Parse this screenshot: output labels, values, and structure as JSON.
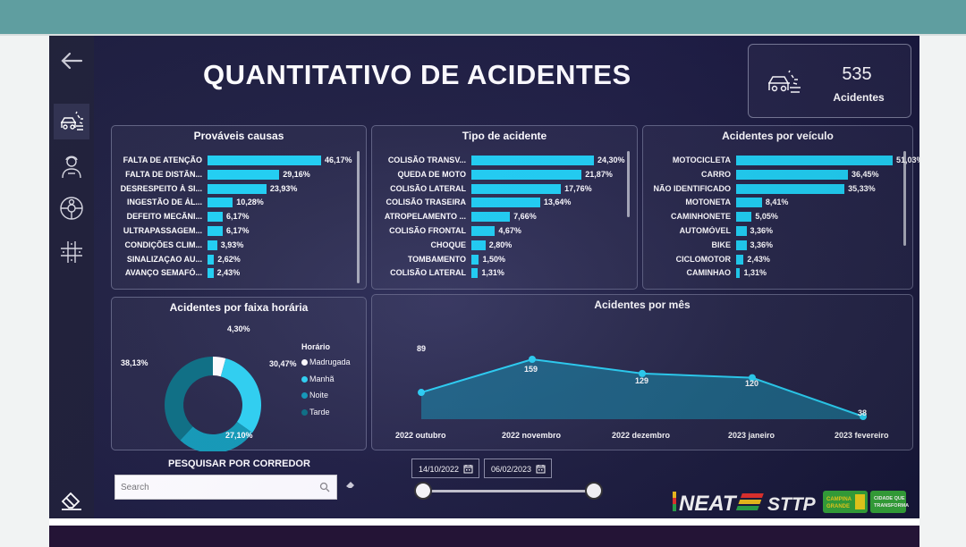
{
  "dashboard": {
    "title": "QUANTITATIVO DE ACIDENTES"
  },
  "kpi": {
    "value": "535",
    "label": "Acidentes",
    "icon": "car-crash-icon"
  },
  "sidebar": {
    "items": [
      "back-arrow-icon",
      "car-crash-icon",
      "person-icon",
      "steering-wheel-icon",
      "road-icon",
      "eraser-icon"
    ]
  },
  "causes": {
    "title": "Prováveis causas",
    "rows": [
      {
        "label": "FALTA DE ATENÇÃO",
        "value": 46.17,
        "text": "46,17%"
      },
      {
        "label": "FALTA DE DISTÂN...",
        "value": 29.16,
        "text": "29,16%"
      },
      {
        "label": "DESRESPEITO À SI...",
        "value": 23.93,
        "text": "23,93%"
      },
      {
        "label": "INGESTÃO DE ÁL...",
        "value": 10.28,
        "text": "10,28%"
      },
      {
        "label": "DEFEITO MECÂNI...",
        "value": 6.17,
        "text": "6,17%"
      },
      {
        "label": "ULTRAPASSAGEM...",
        "value": 6.17,
        "text": "6,17%"
      },
      {
        "label": "CONDIÇÕES CLIM...",
        "value": 3.93,
        "text": "3,93%"
      },
      {
        "label": "SINALIZAÇAO AU...",
        "value": 2.62,
        "text": "2,62%"
      },
      {
        "label": "AVANÇO SEMAFÓ...",
        "value": 2.43,
        "text": "2,43%"
      }
    ]
  },
  "types": {
    "title": "Tipo de acidente",
    "rows": [
      {
        "label": "COLISÃO TRANSV...",
        "value": 24.3,
        "text": "24,30%"
      },
      {
        "label": "QUEDA DE MOTO",
        "value": 21.87,
        "text": "21,87%"
      },
      {
        "label": "COLISÃO LATERAL",
        "value": 17.76,
        "text": "17,76%"
      },
      {
        "label": "COLISÃO TRASEIRA",
        "value": 13.64,
        "text": "13,64%"
      },
      {
        "label": "ATROPELAMENTO ...",
        "value": 7.66,
        "text": "7,66%"
      },
      {
        "label": "COLISÃO FRONTAL",
        "value": 4.67,
        "text": "4,67%"
      },
      {
        "label": "CHOQUE",
        "value": 2.8,
        "text": "2,80%"
      },
      {
        "label": "TOMBAMENTO",
        "value": 1.5,
        "text": "1,50%"
      },
      {
        "label": "COLISÃO LATERAL",
        "value": 1.31,
        "text": "1,31%"
      }
    ]
  },
  "vehicles": {
    "title": "Acidentes por veículo",
    "rows": [
      {
        "label": "MOTOCICLETA",
        "value": 51.03,
        "text": "51,03%"
      },
      {
        "label": "CARRO",
        "value": 36.45,
        "text": "36,45%"
      },
      {
        "label": "NÃO IDENTIFICADO",
        "value": 35.33,
        "text": "35,33%"
      },
      {
        "label": "MOTONETA",
        "value": 8.41,
        "text": "8,41%"
      },
      {
        "label": "CAMINHONETE",
        "value": 5.05,
        "text": "5,05%"
      },
      {
        "label": "AUTOMÓVEL",
        "value": 3.36,
        "text": "3,36%"
      },
      {
        "label": "BIKE",
        "value": 3.36,
        "text": "3,36%"
      },
      {
        "label": "CICLOMOTOR",
        "value": 2.43,
        "text": "2,43%"
      },
      {
        "label": "CAMINHAO",
        "value": 1.31,
        "text": "1,31%"
      }
    ]
  },
  "shift": {
    "title": "Acidentes por faixa horária",
    "legend_title": "Horário",
    "slices": [
      {
        "name": "Madrugada",
        "value": 4.3,
        "text": "4,30%",
        "color": "#ffffff"
      },
      {
        "name": "Manhã",
        "value": 30.47,
        "text": "30,47%",
        "color": "#2dd3f2"
      },
      {
        "name": "Noite",
        "value": 27.1,
        "text": "27,10%",
        "color": "#119bb6"
      },
      {
        "name": "Tarde",
        "value": 38.13,
        "text": "38,13%",
        "color": "#0a6f82"
      }
    ]
  },
  "monthly": {
    "title": "Acidentes por mês",
    "months": [
      "2022 outubro",
      "2022 novembro",
      "2022 dezembro",
      "2023 janeiro",
      "2023 fevereiro"
    ],
    "values": [
      89,
      159,
      129,
      120,
      38
    ],
    "labels": [
      "89",
      "159",
      "129",
      "120",
      "38"
    ]
  },
  "filters": {
    "search_title": "PESQUISAR POR CORREDOR",
    "search_placeholder": "Search",
    "date_from": "14/10/2022",
    "date_to": "06/02/2023",
    "slider_start": 0,
    "slider_end": 1
  },
  "logos": {
    "neat": "NEAT",
    "sttp": "STTP",
    "campina": "CAMPINA GRANDE",
    "cidade": "CIDADE QUE TRANSFORMA"
  },
  "colors": {
    "bar": "#1ed1f3",
    "area": "#1d6f8e",
    "line": "#2bd3f5"
  }
}
